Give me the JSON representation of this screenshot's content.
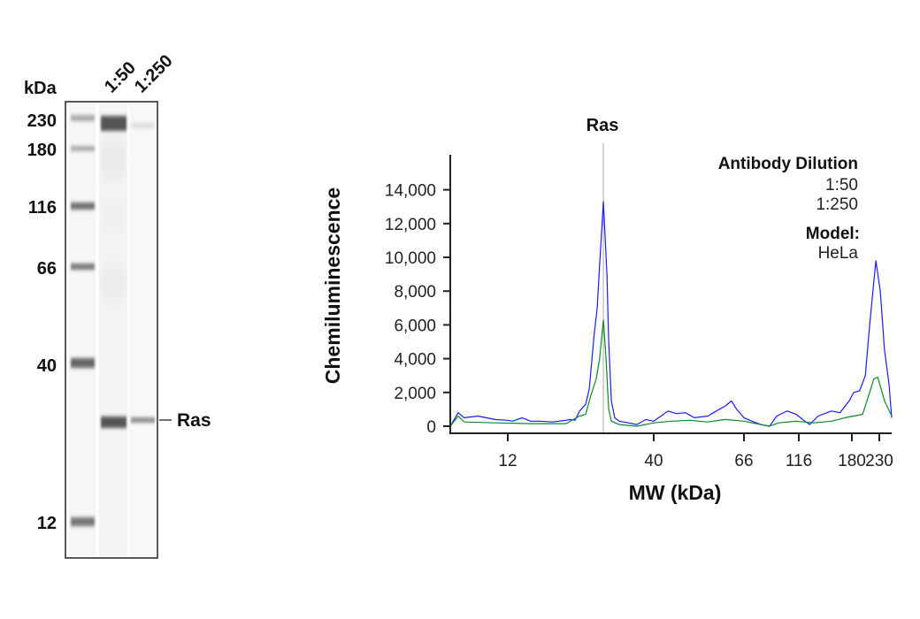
{
  "blot": {
    "unit_label": "kDa",
    "lane_labels": [
      "1:50",
      "1:250"
    ],
    "markers": [
      "230",
      "180",
      "116",
      "66",
      "40",
      "12"
    ],
    "target_label": "Ras"
  },
  "chart_data": {
    "type": "line",
    "xlabel": "MW (kDa)",
    "ylabel": "Chemiluminescence",
    "x_ticks": [
      "12",
      "40",
      "66",
      "116",
      "180",
      "230"
    ],
    "y_ticks": [
      "0",
      "2,000",
      "4,000",
      "6,000",
      "8,000",
      "10,000",
      "12,000",
      "14,000"
    ],
    "ylim": [
      0,
      16500
    ],
    "xlim_kDa": [
      7.5,
      257
    ],
    "annotation": {
      "label": "Ras",
      "x": 26.4
    },
    "legend": {
      "title": "Antibody Dilution",
      "placement": "top-right",
      "model_label": "Model:",
      "model_value": "HeLa"
    },
    "grid": false,
    "series": [
      {
        "name": "1:50",
        "color": "#1a1aff",
        "text_color": "#2b3d9a",
        "points": [
          [
            7.5,
            0
          ],
          [
            8.0,
            800
          ],
          [
            8.4,
            500
          ],
          [
            9.4,
            600
          ],
          [
            10.8,
            400
          ],
          [
            12.0,
            350
          ],
          [
            12.5,
            300
          ],
          [
            13.5,
            500
          ],
          [
            14.5,
            300
          ],
          [
            15.6,
            300
          ],
          [
            17.4,
            250
          ],
          [
            19.4,
            350
          ],
          [
            20.1,
            400
          ],
          [
            20.9,
            350
          ],
          [
            21.7,
            900
          ],
          [
            22.8,
            1300
          ],
          [
            23.5,
            2200
          ],
          [
            24.5,
            5500
          ],
          [
            25.1,
            7000
          ],
          [
            25.6,
            9500
          ],
          [
            26.4,
            13300
          ],
          [
            27.2,
            9000
          ],
          [
            27.6,
            5000
          ],
          [
            28.2,
            1500
          ],
          [
            29.0,
            500
          ],
          [
            30.1,
            300
          ],
          [
            32.4,
            200
          ],
          [
            34.8,
            100
          ],
          [
            37.5,
            400
          ],
          [
            40,
            300
          ],
          [
            42.2,
            700
          ],
          [
            43.3,
            900
          ],
          [
            45.4,
            750
          ],
          [
            47.7,
            800
          ],
          [
            50.1,
            500
          ],
          [
            54.0,
            600
          ],
          [
            56.6,
            900
          ],
          [
            59.5,
            1200
          ],
          [
            61.6,
            1500
          ],
          [
            63.4,
            1000
          ],
          [
            66,
            500
          ],
          [
            71.6,
            300
          ],
          [
            78.5,
            100
          ],
          [
            85.9,
            0
          ],
          [
            92.4,
            600
          ],
          [
            103,
            900
          ],
          [
            113,
            700
          ],
          [
            122,
            300
          ],
          [
            127,
            100
          ],
          [
            136,
            600
          ],
          [
            152,
            900
          ],
          [
            163,
            800
          ],
          [
            176,
            1500
          ],
          [
            183,
            2000
          ],
          [
            193,
            2100
          ],
          [
            203,
            3000
          ],
          [
            211,
            6000
          ],
          [
            223,
            9800
          ],
          [
            232,
            8000
          ],
          [
            241,
            4500
          ],
          [
            251,
            2500
          ],
          [
            257,
            500
          ]
        ]
      },
      {
        "name": "1:250",
        "color": "#0a8a2a",
        "text_color": "#0a8a3a",
        "points": [
          [
            7.5,
            0
          ],
          [
            8.0,
            600
          ],
          [
            8.4,
            250
          ],
          [
            10.8,
            200
          ],
          [
            14.5,
            150
          ],
          [
            19.4,
            150
          ],
          [
            20.6,
            400
          ],
          [
            21.7,
            600
          ],
          [
            22.8,
            700
          ],
          [
            23.8,
            1800
          ],
          [
            24.9,
            2800
          ],
          [
            25.6,
            4000
          ],
          [
            26.4,
            6300
          ],
          [
            27.0,
            4000
          ],
          [
            27.6,
            1000
          ],
          [
            28.2,
            300
          ],
          [
            30.1,
            100
          ],
          [
            34.8,
            0
          ],
          [
            40,
            200
          ],
          [
            44.3,
            300
          ],
          [
            48.9,
            350
          ],
          [
            54.0,
            250
          ],
          [
            59.5,
            400
          ],
          [
            66,
            300
          ],
          [
            78.5,
            100
          ],
          [
            85.9,
            0
          ],
          [
            94.1,
            200
          ],
          [
            113,
            300
          ],
          [
            131,
            200
          ],
          [
            152,
            300
          ],
          [
            170,
            500
          ],
          [
            183,
            600
          ],
          [
            198,
            700
          ],
          [
            209,
            1800
          ],
          [
            219,
            2800
          ],
          [
            227,
            2900
          ],
          [
            241,
            1500
          ],
          [
            257,
            600
          ]
        ]
      }
    ]
  }
}
